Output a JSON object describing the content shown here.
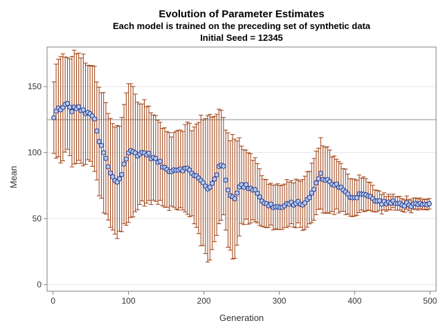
{
  "chart_data": {
    "type": "scatter",
    "title": "Evolution of Parameter Estimates",
    "subtitle": "Each model is trained on the preceding set of synthetic data",
    "subtitle2": "Initial Seed = 12345",
    "xlabel": "Generation",
    "ylabel": "Mean",
    "xlim": [
      -8,
      508
    ],
    "ylim": [
      -5,
      180
    ],
    "x_ticks": [
      0,
      100,
      200,
      300,
      400,
      500
    ],
    "y_ticks": [
      0,
      50,
      100,
      150
    ],
    "grid": true,
    "reference_line_y": 125,
    "colors": {
      "marker_fill": "#b8c8ea",
      "marker_stroke": "#1f3a93",
      "error_bar": "#9c3b0c",
      "grid": "#e6e6e6",
      "reference": "#8c8c8c"
    },
    "anchors": [
      [
        1,
        126,
        28
      ],
      [
        4,
        131,
        33
      ],
      [
        8,
        134,
        37
      ],
      [
        12,
        133,
        39
      ],
      [
        18,
        137,
        36
      ],
      [
        25,
        132,
        40
      ],
      [
        32,
        135,
        42
      ],
      [
        40,
        131,
        40
      ],
      [
        45,
        129,
        38
      ],
      [
        50,
        131,
        37
      ],
      [
        55,
        124,
        40
      ],
      [
        60,
        110,
        38
      ],
      [
        65,
        103,
        42
      ],
      [
        70,
        95,
        45
      ],
      [
        75,
        85,
        42
      ],
      [
        80,
        80,
        42
      ],
      [
        85,
        78,
        40
      ],
      [
        90,
        82,
        45
      ],
      [
        95,
        93,
        50
      ],
      [
        100,
        100,
        55
      ],
      [
        105,
        101,
        48
      ],
      [
        110,
        99,
        42
      ],
      [
        115,
        99,
        38
      ],
      [
        120,
        100,
        38
      ],
      [
        125,
        99,
        36
      ],
      [
        130,
        97,
        34
      ],
      [
        140,
        93,
        30
      ],
      [
        150,
        87,
        28
      ],
      [
        160,
        87,
        27
      ],
      [
        170,
        88,
        30
      ],
      [
        180,
        87,
        33
      ],
      [
        190,
        82,
        38
      ],
      [
        195,
        79,
        45
      ],
      [
        200,
        76,
        52
      ],
      [
        205,
        72,
        56
      ],
      [
        210,
        76,
        52
      ],
      [
        215,
        82,
        48
      ],
      [
        220,
        88,
        42
      ],
      [
        225,
        92,
        38
      ],
      [
        230,
        76,
        38
      ],
      [
        235,
        68,
        45
      ],
      [
        240,
        65,
        50
      ],
      [
        245,
        72,
        40
      ],
      [
        250,
        75,
        30
      ],
      [
        260,
        74,
        25
      ],
      [
        270,
        71,
        22
      ],
      [
        280,
        61,
        18
      ],
      [
        290,
        60,
        17
      ],
      [
        300,
        58,
        17
      ],
      [
        310,
        60,
        17
      ],
      [
        320,
        62,
        17
      ],
      [
        330,
        61,
        18
      ],
      [
        340,
        65,
        20
      ],
      [
        350,
        78,
        24
      ],
      [
        355,
        83,
        26
      ],
      [
        360,
        80,
        24
      ],
      [
        370,
        77,
        22
      ],
      [
        380,
        74,
        18
      ],
      [
        390,
        68,
        16
      ],
      [
        400,
        66,
        14
      ],
      [
        410,
        70,
        13
      ],
      [
        420,
        66,
        11
      ],
      [
        430,
        63,
        8
      ],
      [
        440,
        62,
        6
      ],
      [
        450,
        62,
        5
      ],
      [
        460,
        61,
        5
      ],
      [
        470,
        61,
        5
      ],
      [
        480,
        60,
        4
      ],
      [
        490,
        60,
        4
      ],
      [
        500,
        60,
        4
      ]
    ]
  }
}
